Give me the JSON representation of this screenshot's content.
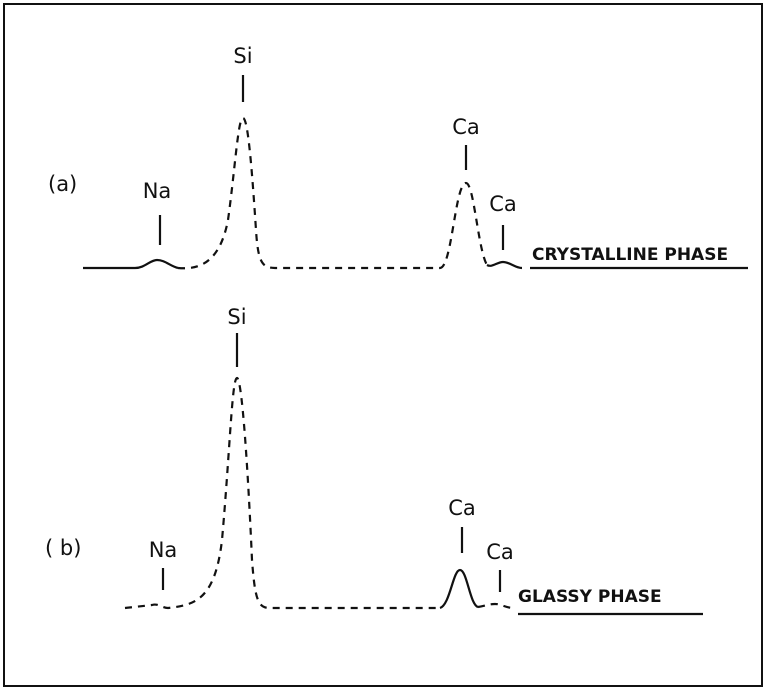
{
  "panels": [
    {
      "label": "(a)",
      "peaks": [
        {
          "label": "Na"
        },
        {
          "label": "Si"
        },
        {
          "label": "Ca"
        },
        {
          "label": "Ca"
        }
      ],
      "phase": "CRYSTALLINE PHASE"
    },
    {
      "label": "( b)",
      "peaks": [
        {
          "label": "Na"
        },
        {
          "label": "Si"
        },
        {
          "label": "Ca"
        },
        {
          "label": "Ca"
        }
      ],
      "phase": "GLASSY PHASE"
    }
  ]
}
